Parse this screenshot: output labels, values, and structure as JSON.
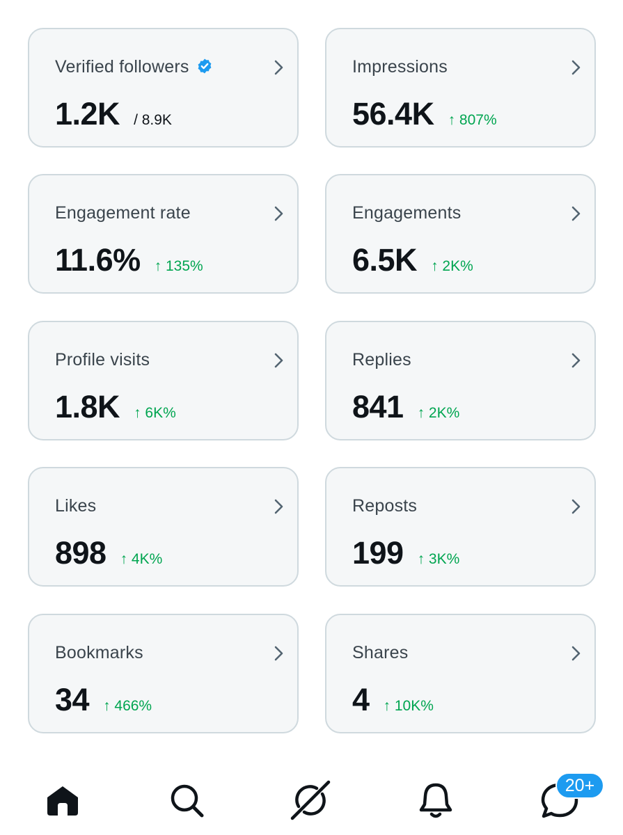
{
  "cards": [
    {
      "label": "Verified followers",
      "value": "1.2K",
      "extra": "/ 8.9K"
    },
    {
      "label": "Impressions",
      "value": "56.4K",
      "extra": "↑ 807%"
    },
    {
      "label": "Engagement rate",
      "value": "11.6%",
      "extra": "↑ 135%"
    },
    {
      "label": "Engagements",
      "value": "6.5K",
      "extra": "↑ 2K%"
    },
    {
      "label": "Profile visits",
      "value": "1.8K",
      "extra": "↑ 6K%"
    },
    {
      "label": "Replies",
      "value": "841",
      "extra": "↑ 2K%"
    },
    {
      "label": "Likes",
      "value": "898",
      "extra": "↑ 4K%"
    },
    {
      "label": "Reposts",
      "value": "199",
      "extra": "↑ 3K%"
    },
    {
      "label": "Bookmarks",
      "value": "34",
      "extra": "↑ 466%"
    },
    {
      "label": "Shares",
      "value": "4",
      "extra": "↑ 10K%"
    }
  ],
  "nav": {
    "items": [
      "home-icon",
      "search-icon",
      "grok-icon",
      "notifications-icon",
      "messages-icon"
    ],
    "messages_badge": "20+"
  },
  "colors": {
    "accent": "#1d9bf0",
    "positive": "#00a550",
    "card_bg": "#f5f7f8",
    "card_border": "#cfd9de"
  }
}
